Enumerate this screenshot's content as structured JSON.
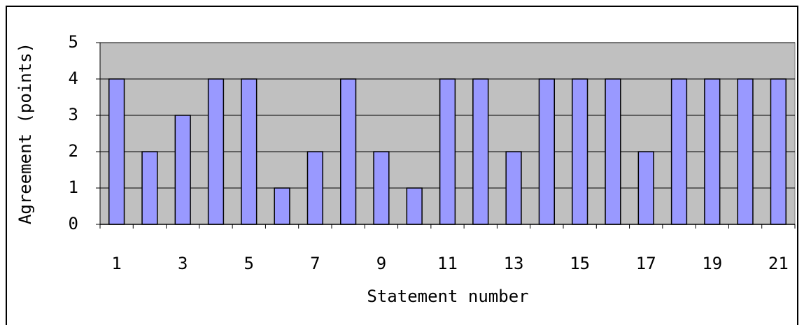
{
  "chart_data": {
    "type": "bar",
    "x_label": "Statement number",
    "y_label": "Agreement (points)",
    "categories": [
      "1",
      null,
      "3",
      null,
      "5",
      null,
      "7",
      null,
      "9",
      null,
      "11",
      null,
      "13",
      null,
      "15",
      null,
      "17",
      null,
      "19",
      null,
      "21"
    ],
    "values": [
      4,
      2,
      3,
      4,
      4,
      1,
      2,
      4,
      2,
      1,
      4,
      4,
      2,
      4,
      4,
      4,
      2,
      4,
      4,
      4,
      4
    ],
    "color": "#9999ff",
    "ylim": [
      0,
      5
    ],
    "yticks": [
      0,
      1,
      2,
      3,
      4,
      5
    ],
    "grid": true
  }
}
